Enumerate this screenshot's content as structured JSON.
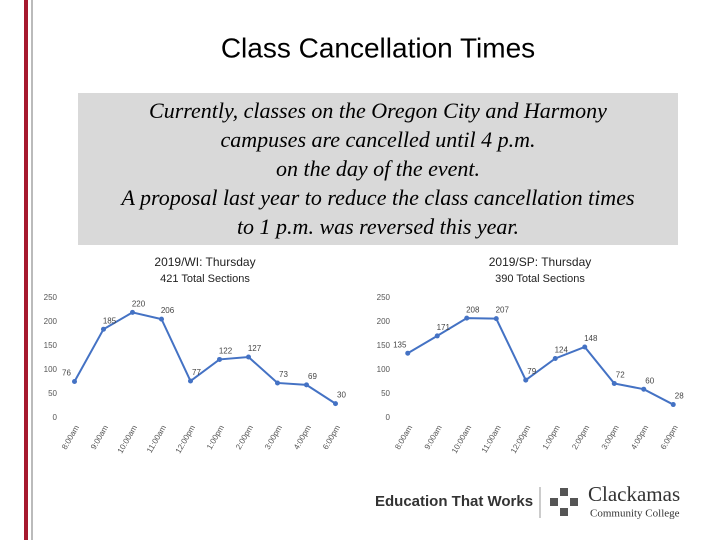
{
  "title": "Class Cancellation Times",
  "body": [
    "Currently, classes on the Oregon City and Harmony",
    "campuses are cancelled until 4 p.m.",
    "on the day of the event.",
    "A proposal last year to reduce the class cancellation times",
    "to 1 p.m. was reversed this year."
  ],
  "footer": {
    "tagline": "Education That Works",
    "logo": [
      "Clackamas",
      "Community College"
    ]
  },
  "chart_data": [
    {
      "type": "line",
      "title": "2019/WI: Thursday",
      "subtitle": "421 Total Sections",
      "categories": [
        "8:00am",
        "9:00am",
        "10:00am",
        "11:00am",
        "12:00pm",
        "1:00pm",
        "2:00pm",
        "3:00pm",
        "4:00pm",
        "6:00pm"
      ],
      "values": [
        76,
        185,
        220,
        206,
        77,
        122,
        127,
        73,
        69,
        30
      ],
      "color": "#4472c4",
      "ylim": [
        0,
        250
      ],
      "yticks": [
        0,
        50,
        100,
        150,
        200,
        250
      ],
      "grid": false
    },
    {
      "type": "line",
      "title": "2019/SP: Thursday",
      "subtitle": "390 Total Sections",
      "categories": [
        "8:00am",
        "9:00am",
        "10:00am",
        "11:00am",
        "12:00pm",
        "1:00pm",
        "2:00pm",
        "3:00pm",
        "4:00pm",
        "6:00pm"
      ],
      "values": [
        135,
        171,
        208,
        207,
        79,
        124,
        148,
        72,
        60,
        28
      ],
      "color": "#4472c4",
      "ylim": [
        0,
        250
      ],
      "yticks": [
        0,
        50,
        100,
        150,
        200,
        250
      ],
      "grid": false
    }
  ]
}
